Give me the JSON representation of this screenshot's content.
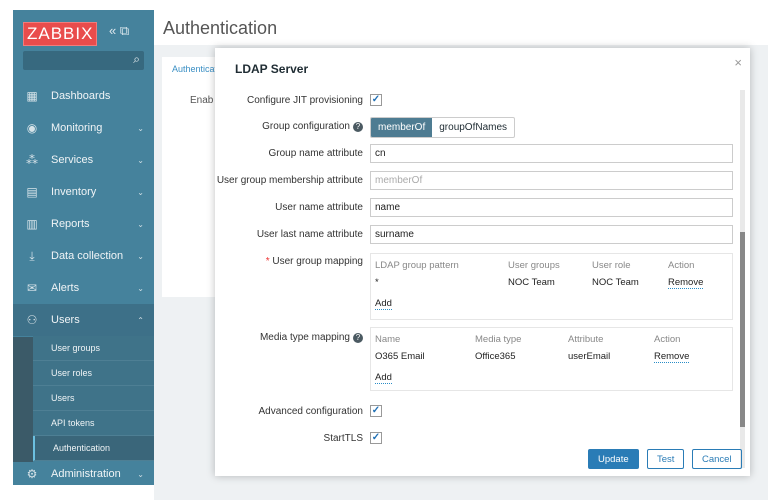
{
  "sidebar": {
    "logo": "ZABBIX",
    "collapse_icon": "«",
    "kiosk_icon": "⧉",
    "search_icon": "🔍",
    "items": [
      {
        "label": "Dashboards",
        "icon": "▦"
      },
      {
        "label": "Monitoring",
        "icon": "◉"
      },
      {
        "label": "Services",
        "icon": "⁂"
      },
      {
        "label": "Inventory",
        "icon": "▤"
      },
      {
        "label": "Reports",
        "icon": "▥"
      },
      {
        "label": "Data collection",
        "icon": "⤓"
      },
      {
        "label": "Alerts",
        "icon": "✉"
      },
      {
        "label": "Users",
        "icon": "⚇"
      },
      {
        "label": "Administration",
        "icon": "⚙"
      }
    ],
    "users_sub": [
      "User groups",
      "User roles",
      "Users",
      "API tokens",
      "Authentication"
    ]
  },
  "page": {
    "title": "Authentication",
    "tab": "Authenticatio",
    "enabled_label": "Enab"
  },
  "dialog": {
    "title": "LDAP Server",
    "close": "×",
    "jit_label": "Configure JIT provisioning",
    "group_config_label": "Group configuration",
    "group_config_options": [
      "memberOf",
      "groupOfNames"
    ],
    "group_config_selected": "memberOf",
    "group_name_attr_label": "Group name attribute",
    "group_name_attr": "cn",
    "membership_attr_label": "User group membership attribute",
    "membership_attr_placeholder": "memberOf",
    "user_name_attr_label": "User name attribute",
    "user_name_attr": "name",
    "last_name_attr_label": "User last name attribute",
    "last_name_attr": "surname",
    "group_mapping_label": "User group mapping",
    "group_mapping": {
      "headers": [
        "LDAP group pattern",
        "User groups",
        "User role",
        "Action"
      ],
      "rows": [
        {
          "pattern": "*",
          "groups": "NOC Team",
          "role": "NOC Team",
          "action": "Remove"
        }
      ],
      "add": "Add"
    },
    "media_mapping_label": "Media type mapping",
    "media_mapping": {
      "headers": [
        "Name",
        "Media type",
        "Attribute",
        "Action"
      ],
      "rows": [
        {
          "name": "O365 Email",
          "type": "Office365",
          "attribute": "userEmail",
          "action": "Remove"
        }
      ],
      "add": "Add"
    },
    "advanced_label": "Advanced configuration",
    "starttls_label": "StartTLS",
    "buttons": {
      "update": "Update",
      "test": "Test",
      "cancel": "Cancel"
    }
  }
}
